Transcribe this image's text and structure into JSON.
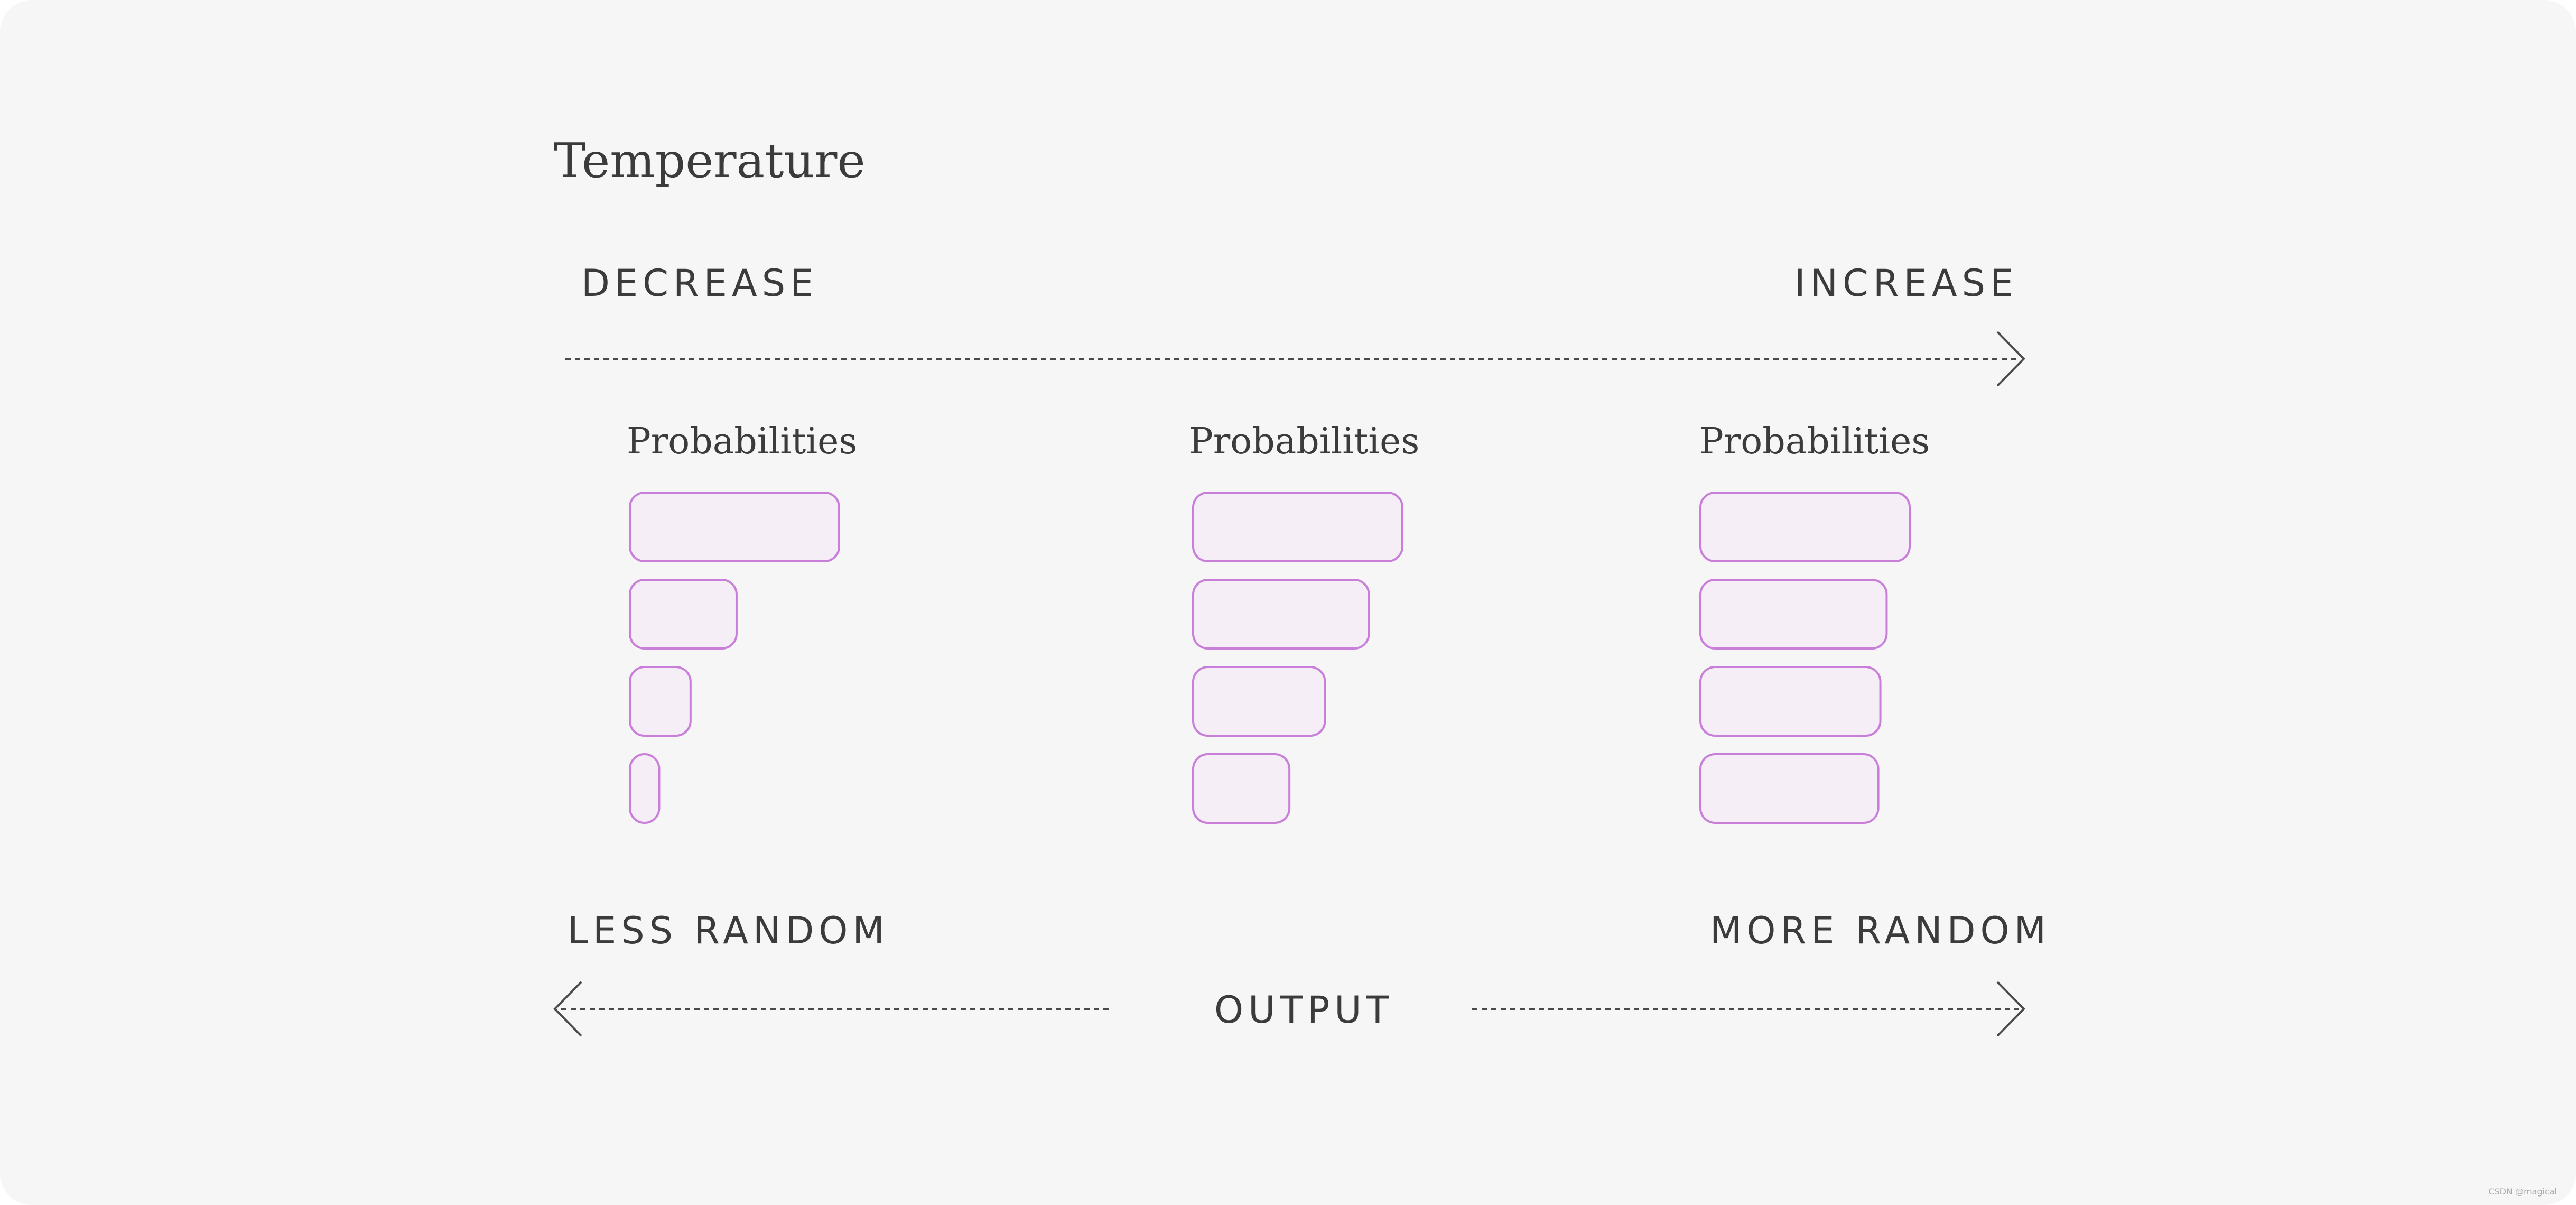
{
  "title": "Temperature",
  "top_axis": {
    "left_label": "DECREASE",
    "right_label": "INCREASE"
  },
  "columns": [
    {
      "label": "Probabilities",
      "bars": [
        1.0,
        0.51,
        0.29,
        0.14
      ]
    },
    {
      "label": "Probabilities",
      "bars": [
        1.0,
        0.84,
        0.63,
        0.46
      ]
    },
    {
      "label": "Probabilities",
      "bars": [
        1.0,
        0.89,
        0.86,
        0.85
      ]
    }
  ],
  "bottom_axis": {
    "left_label": "LESS RANDOM",
    "center_label": "OUTPUT",
    "right_label": "MORE RANDOM"
  },
  "watermark": "CSDN @magical",
  "colors": {
    "background": "#f6f6f6",
    "text": "#3b3b3b",
    "bar_stroke": "#c97fd9",
    "bar_fill": "#f5eef6",
    "arrow": "#4a4a4a"
  }
}
